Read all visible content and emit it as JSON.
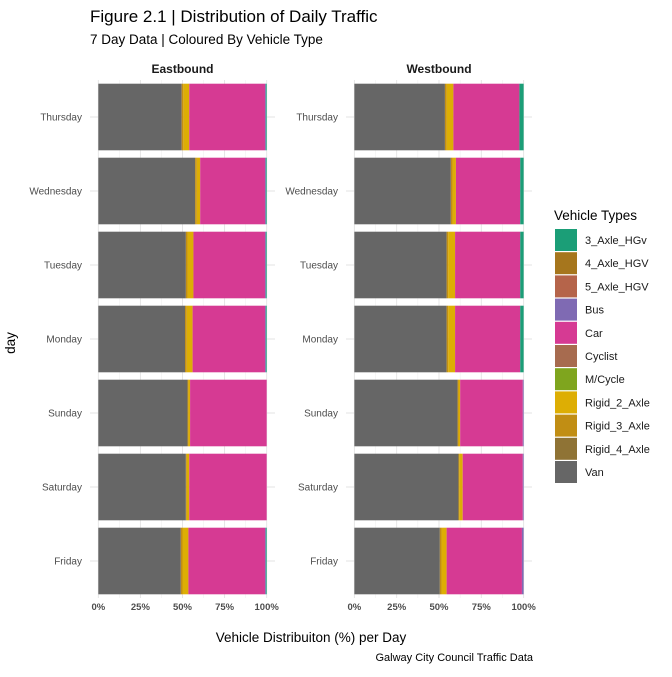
{
  "chart_data": {
    "type": "bar",
    "orientation": "horizontal",
    "stacked": "percent",
    "title": "Figure 2.1 | Distribution of Daily Traffic",
    "subtitle": "7 Day Data | Coloured By Vehicle Type",
    "xlabel": "Vehicle Distribuiton (%) per Day",
    "ylabel": "day",
    "caption": "Galway City Council Traffic Data",
    "xlim": [
      0,
      100
    ],
    "x_ticks": [
      "0%",
      "25%",
      "50%",
      "75%",
      "100%"
    ],
    "grid": true,
    "legend_position": "right",
    "legend_title": "Vehicle Types",
    "vehicle_types": [
      {
        "name": "3_Axle_HGv",
        "color": "#1B9E77"
      },
      {
        "name": "4_Axle_HGV",
        "color": "#A6761D"
      },
      {
        "name": "5_Axle_HGV",
        "color": "#B5644A"
      },
      {
        "name": "Bus",
        "color": "#7F6AB3"
      },
      {
        "name": "Car",
        "color": "#D63A93"
      },
      {
        "name": "Cyclist",
        "color": "#A76B4F"
      },
      {
        "name": "M/Cycle",
        "color": "#7FA51E"
      },
      {
        "name": "Rigid_2_Axle",
        "color": "#DDAE04"
      },
      {
        "name": "Rigid_3_Axle",
        "color": "#C18E14"
      },
      {
        "name": "Rigid_4_Axle",
        "color": "#8F7335"
      },
      {
        "name": "Van",
        "color": "#666666"
      }
    ],
    "days": [
      "Thursday",
      "Wednesday",
      "Tuesday",
      "Monday",
      "Sunday",
      "Saturday",
      "Friday"
    ],
    "panels": [
      {
        "name": "Eastbound",
        "bars": [
          {
            "day": "Thursday",
            "values": {
              "Van": 49.5,
              "Rigid_3_Axle": 1.0,
              "Rigid_2_Axle": 3.5,
              "Car": 45.0,
              "Bus": 0.5,
              "3_Axle_HGv": 0.5
            }
          },
          {
            "day": "Wednesday",
            "values": {
              "Van": 57.5,
              "Rigid_3_Axle": 1.0,
              "Rigid_2_Axle": 2.0,
              "Car": 38.5,
              "Bus": 0.5,
              "3_Axle_HGv": 0.5
            }
          },
          {
            "day": "Tuesday",
            "values": {
              "Van": 52.0,
              "Rigid_3_Axle": 1.0,
              "Rigid_2_Axle": 3.5,
              "Car": 42.5,
              "Bus": 0.5,
              "3_Axle_HGv": 0.5
            }
          },
          {
            "day": "Monday",
            "values": {
              "Van": 51.5,
              "Rigid_3_Axle": 1.0,
              "Rigid_2_Axle": 3.5,
              "Car": 43.0,
              "Bus": 0.5,
              "3_Axle_HGv": 0.5
            }
          },
          {
            "day": "Sunday",
            "values": {
              "Van": 53.0,
              "Rigid_3_Axle": 0.5,
              "Rigid_2_Axle": 1.0,
              "Car": 45.5
            }
          },
          {
            "day": "Saturday",
            "values": {
              "Van": 52.0,
              "Rigid_3_Axle": 0.5,
              "Rigid_2_Axle": 1.5,
              "Car": 46.0
            }
          },
          {
            "day": "Friday",
            "values": {
              "Van": 49.0,
              "Rigid_3_Axle": 1.0,
              "Rigid_2_Axle": 3.5,
              "Car": 45.5,
              "Bus": 0.5,
              "3_Axle_HGv": 0.5
            }
          }
        ]
      },
      {
        "name": "Westbound",
        "bars": [
          {
            "day": "Thursday",
            "values": {
              "Van": 53.5,
              "Rigid_3_Axle": 1.0,
              "Rigid_2_Axle": 4.0,
              "Car": 39.0,
              "3_Axle_HGv": 2.5
            }
          },
          {
            "day": "Wednesday",
            "values": {
              "Van": 57.0,
              "Rigid_3_Axle": 1.0,
              "Rigid_2_Axle": 2.0,
              "Car": 38.0,
              "3_Axle_HGv": 2.0
            }
          },
          {
            "day": "Tuesday",
            "values": {
              "Van": 54.5,
              "Rigid_3_Axle": 1.0,
              "Rigid_2_Axle": 4.0,
              "Car": 38.5,
              "3_Axle_HGv": 2.0
            }
          },
          {
            "day": "Monday",
            "values": {
              "Van": 54.5,
              "Rigid_3_Axle": 1.0,
              "Rigid_2_Axle": 4.0,
              "Car": 38.5,
              "3_Axle_HGv": 2.0
            }
          },
          {
            "day": "Sunday",
            "values": {
              "Van": 61.0,
              "Rigid_3_Axle": 0.5,
              "Rigid_2_Axle": 1.0,
              "Car": 37.0,
              "Bus": 0.5
            }
          },
          {
            "day": "Saturday",
            "values": {
              "Van": 61.5,
              "Rigid_3_Axle": 0.5,
              "Rigid_2_Axle": 2.0,
              "Car": 35.5,
              "Bus": 0.5
            }
          },
          {
            "day": "Friday",
            "values": {
              "Van": 50.5,
              "Rigid_3_Axle": 1.0,
              "Rigid_2_Axle": 3.0,
              "Car": 44.5,
              "Bus": 1.0
            }
          }
        ]
      }
    ]
  }
}
